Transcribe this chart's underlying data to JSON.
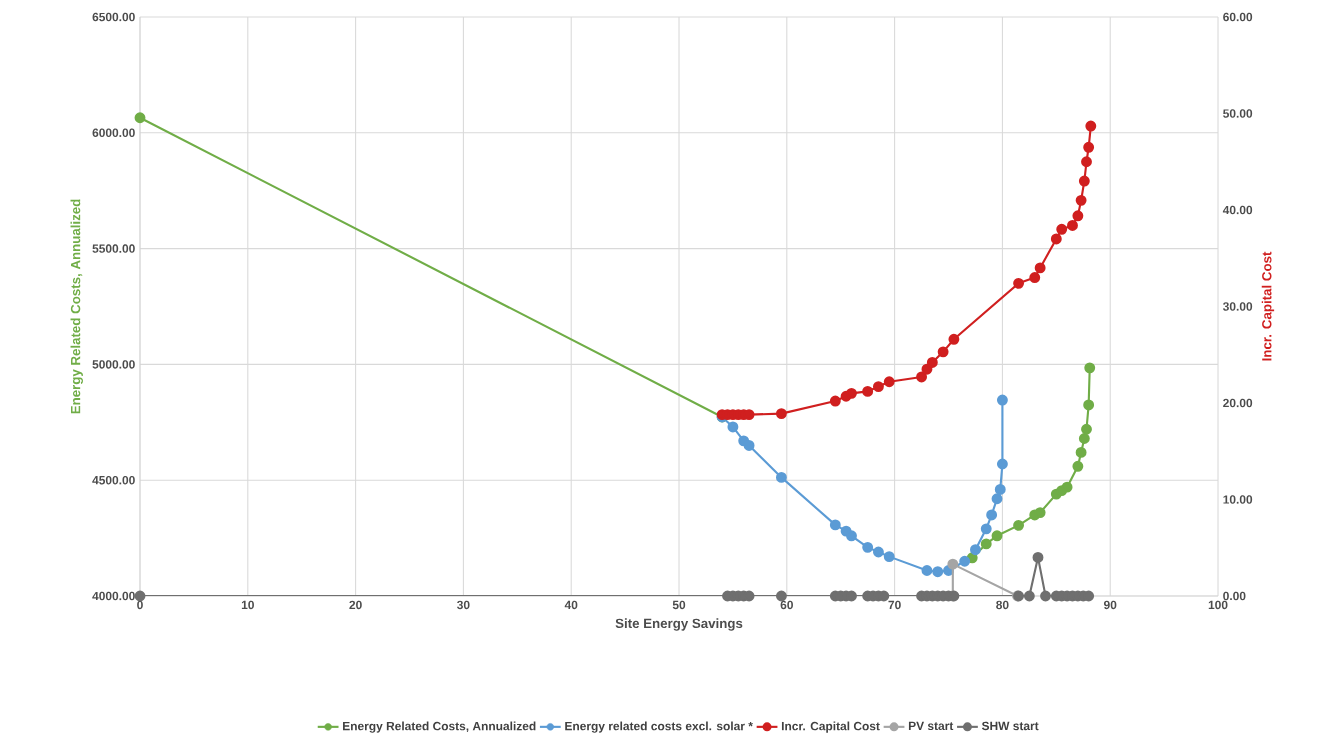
{
  "chart_data": {
    "type": "line",
    "xlabel": "Site Energy Savings",
    "ylabel": "Energy Related Costs, Annualized",
    "y2label": "Incr. Capital Cost",
    "xlim": [
      0,
      100
    ],
    "xticks": [
      0,
      10,
      20,
      30,
      40,
      50,
      60,
      70,
      80,
      90,
      100
    ],
    "ylim": [
      4000,
      6500
    ],
    "yticks": [
      {
        "value": 4000,
        "label": "4000.00"
      },
      {
        "value": 4500,
        "label": "4500.00"
      },
      {
        "value": 5000,
        "label": "5000.00"
      },
      {
        "value": 5500,
        "label": "5500.00"
      },
      {
        "value": 6000,
        "label": "6000.00"
      },
      {
        "value": 6500,
        "label": "6500.00"
      }
    ],
    "y2lim": [
      0,
      60
    ],
    "y2ticks": [
      {
        "value": 0,
        "label": "0.00"
      },
      {
        "value": 10,
        "label": "10.00"
      },
      {
        "value": 20,
        "label": "20.00"
      },
      {
        "value": 30,
        "label": "30.00"
      },
      {
        "value": 40,
        "label": "40.00"
      },
      {
        "value": 50,
        "label": "50.00"
      },
      {
        "value": 60,
        "label": "60.00"
      }
    ],
    "grid": true,
    "legend": "bottom",
    "marker": "circle",
    "line_style": "solid",
    "series": [
      {
        "name": "Energy Related Costs, Annualized",
        "color": "#70ad47",
        "x": [
          0,
          54,
          60,
          77.2,
          78.5,
          79.5,
          81.5,
          83,
          83.5,
          85,
          85.5,
          86,
          87,
          87.3,
          87.6,
          87.8,
          88,
          88.1
        ],
        "values": [
          6065,
          4773,
          null,
          4165,
          4225,
          4260,
          4305,
          4350,
          4360,
          4440,
          4455,
          4470,
          4560,
          4620,
          4680,
          4720,
          4825,
          4985
        ]
      },
      {
        "name": "Energy related costs excl. solar *",
        "color": "#5b9bd5",
        "x": [
          54,
          55,
          56,
          56.5,
          59.5,
          64.5,
          65.5,
          66,
          67.5,
          68.5,
          69.5,
          73,
          74,
          75,
          76.5,
          77.5,
          78.5,
          79,
          79.5,
          79.8,
          80,
          80
        ],
        "values": [
          4773,
          4730,
          4670,
          4650,
          4512,
          4307,
          4280,
          4260,
          4210,
          4190,
          4170,
          4110,
          4105,
          4110,
          4150,
          4200,
          4290,
          4350,
          4420,
          4460,
          4570,
          4846
        ]
      },
      {
        "name": "Incr. Capital Cost",
        "color": "#d01f1f",
        "axis": "y2",
        "x": [
          54,
          54.5,
          55,
          55.5,
          56,
          56.5,
          59.5,
          64.5,
          65.5,
          66,
          67.5,
          68.5,
          69.5,
          72.5,
          73,
          73.5,
          74.5,
          75.5,
          81.5,
          83,
          83.5,
          85,
          85.5,
          86.5,
          87,
          87.3,
          87.6,
          87.8,
          88,
          88.2
        ],
        "values": [
          18.8,
          18.8,
          18.8,
          18.8,
          18.8,
          18.8,
          18.9,
          20.2,
          20.7,
          21.0,
          21.2,
          21.7,
          22.2,
          22.7,
          23.5,
          24.2,
          25.3,
          26.6,
          32.4,
          33.0,
          34.0,
          37.0,
          38.0,
          38.4,
          39.4,
          41,
          43,
          45,
          46.5,
          48.7
        ]
      },
      {
        "name": "PV start",
        "color": "#a5a5a5",
        "axis": "y2",
        "x": [
          75.4,
          75.4,
          81.4
        ],
        "values": [
          0,
          3.3,
          0
        ]
      },
      {
        "name": "SHW start",
        "color": "#6f6f6f",
        "axis": "y2",
        "x": [
          0,
          54.5,
          55,
          55.5,
          56,
          56.5,
          59.5,
          64.5,
          65,
          65.5,
          66,
          67.5,
          68,
          68.5,
          69,
          72.5,
          73,
          73.5,
          74,
          74.5,
          75,
          75.5,
          81.5,
          82.5,
          83.3,
          84,
          85,
          85.5,
          86,
          86.5,
          87,
          87.5,
          88
        ],
        "values": [
          0,
          0,
          0,
          0,
          0,
          0,
          0,
          0,
          0,
          0,
          0,
          0,
          0,
          0,
          0,
          0,
          0,
          0,
          0,
          0,
          0,
          0,
          0,
          0,
          4.0,
          0,
          0,
          0,
          0,
          0,
          0,
          0,
          0
        ]
      }
    ]
  }
}
